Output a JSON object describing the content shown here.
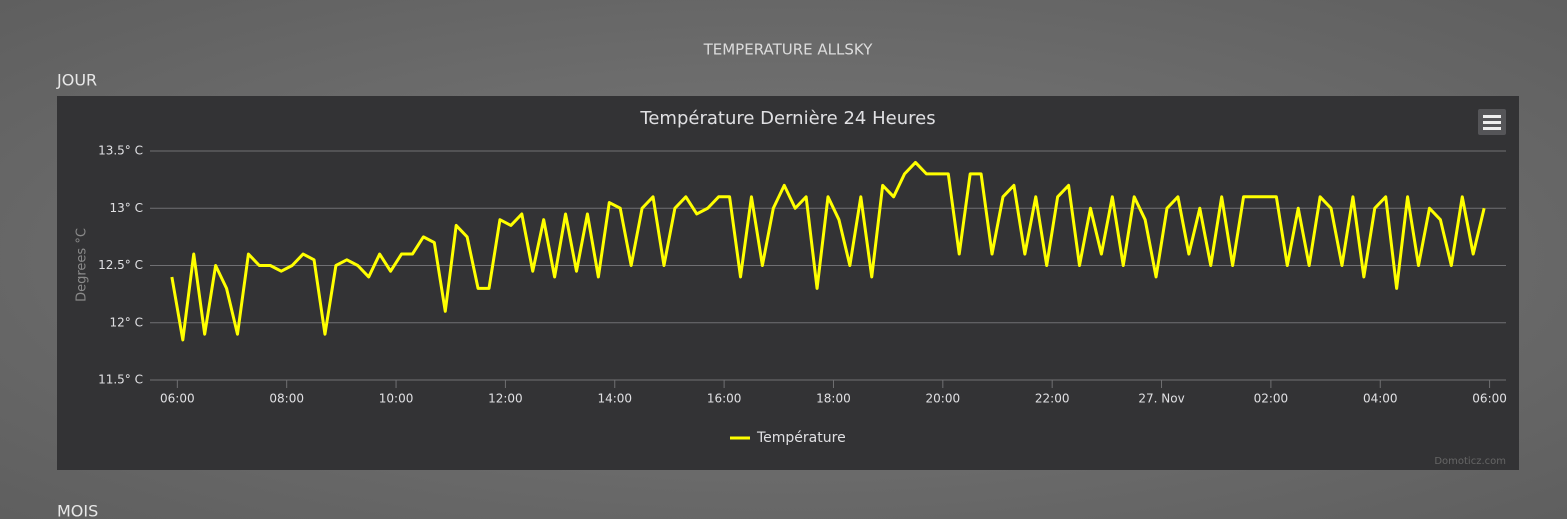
{
  "page": {
    "title": "TEMPERATURE ALLSKY",
    "section": "JOUR",
    "next_section": "MOIS",
    "credit": "Domoticz.com"
  },
  "chart_data": {
    "type": "line",
    "title": "Température Dernière 24 Heures",
    "y_label": "Degrees °C",
    "x": [
      5.9,
      6.1,
      6.3,
      6.5,
      6.7,
      6.9,
      7.1,
      7.3,
      7.5,
      7.7,
      7.9,
      8.1,
      8.3,
      8.5,
      8.7,
      8.9,
      9.1,
      9.3,
      9.5,
      9.7,
      9.9,
      10.1,
      10.3,
      10.5,
      10.7,
      10.9,
      11.1,
      11.3,
      11.5,
      11.7,
      11.9,
      12.1,
      12.3,
      12.5,
      12.7,
      12.9,
      13.1,
      13.3,
      13.5,
      13.7,
      13.9,
      14.1,
      14.3,
      14.5,
      14.7,
      14.9,
      15.1,
      15.3,
      15.5,
      15.7,
      15.9,
      16.1,
      16.3,
      16.5,
      16.7,
      16.9,
      17.1,
      17.3,
      17.5,
      17.7,
      17.9,
      18.1,
      18.3,
      18.5,
      18.7,
      18.9,
      19.1,
      19.3,
      19.5,
      19.7,
      19.9,
      20.1,
      20.3,
      20.5,
      20.7,
      20.9,
      21.1,
      21.3,
      21.5,
      21.7,
      21.9,
      22.1,
      22.3,
      22.5,
      22.7,
      22.9,
      23.1,
      23.3,
      23.5,
      23.7,
      23.9,
      24.1,
      24.3,
      24.5,
      24.7,
      24.9,
      25.1,
      25.3,
      25.5,
      25.7,
      25.9,
      26.1,
      26.3,
      26.5,
      26.7,
      26.9,
      27.1,
      27.3,
      27.5,
      27.7,
      27.9,
      28.1,
      28.3,
      28.5,
      28.7,
      28.9,
      29.1,
      29.3,
      29.5,
      29.7,
      29.9
    ],
    "series": [
      {
        "name": "Température",
        "color": "#ffff00",
        "values": [
          12.4,
          11.85,
          12.6,
          11.9,
          12.5,
          12.3,
          11.9,
          12.6,
          12.5,
          12.5,
          12.45,
          12.5,
          12.6,
          12.55,
          11.9,
          12.5,
          12.55,
          12.5,
          12.4,
          12.6,
          12.45,
          12.6,
          12.6,
          12.75,
          12.7,
          12.1,
          12.85,
          12.75,
          12.3,
          12.3,
          12.9,
          12.85,
          12.95,
          12.45,
          12.9,
          12.4,
          12.95,
          12.45,
          12.95,
          12.4,
          13.05,
          13.0,
          12.5,
          13.0,
          13.1,
          12.5,
          13.0,
          13.1,
          12.95,
          13.0,
          13.1,
          13.1,
          12.4,
          13.1,
          12.5,
          13.0,
          13.2,
          13.0,
          13.1,
          12.3,
          13.1,
          12.9,
          12.5,
          13.1,
          12.4,
          13.2,
          13.1,
          13.3,
          13.4,
          13.3,
          13.3,
          13.3,
          12.6,
          13.3,
          13.3,
          12.6,
          13.1,
          13.2,
          12.6,
          13.1,
          12.5,
          13.1,
          13.2,
          12.5,
          13.0,
          12.6,
          13.1,
          12.5,
          13.1,
          12.9,
          12.4,
          13.0,
          13.1,
          12.6,
          13.0,
          12.5,
          13.1,
          12.5,
          13.1,
          13.1,
          13.1,
          13.1,
          12.5,
          13.0,
          12.5,
          13.1,
          13.0,
          12.5,
          13.1,
          12.4,
          13.0,
          13.1,
          12.3,
          13.1,
          12.5,
          13.0,
          12.9,
          12.5,
          13.1,
          12.6,
          13.0
        ]
      }
    ],
    "xlim": [
      5.5,
      30.3
    ],
    "xticks": [
      {
        "value": 6,
        "label": "06:00"
      },
      {
        "value": 8,
        "label": "08:00"
      },
      {
        "value": 10,
        "label": "10:00"
      },
      {
        "value": 12,
        "label": "12:00"
      },
      {
        "value": 14,
        "label": "14:00"
      },
      {
        "value": 16,
        "label": "16:00"
      },
      {
        "value": 18,
        "label": "18:00"
      },
      {
        "value": 20,
        "label": "20:00"
      },
      {
        "value": 22,
        "label": "22:00"
      },
      {
        "value": 24,
        "label": "27. Nov"
      },
      {
        "value": 26,
        "label": "02:00"
      },
      {
        "value": 28,
        "label": "04:00"
      },
      {
        "value": 30,
        "label": "06:00"
      }
    ],
    "ylim": [
      11.5,
      13.5
    ],
    "yticks": [
      {
        "value": 11.5,
        "label": "11.5° C"
      },
      {
        "value": 12,
        "label": "12° C"
      },
      {
        "value": 12.5,
        "label": "12.5° C"
      },
      {
        "value": 13,
        "label": "13° C"
      },
      {
        "value": 13.5,
        "label": "13.5° C"
      }
    ],
    "grid": true
  }
}
